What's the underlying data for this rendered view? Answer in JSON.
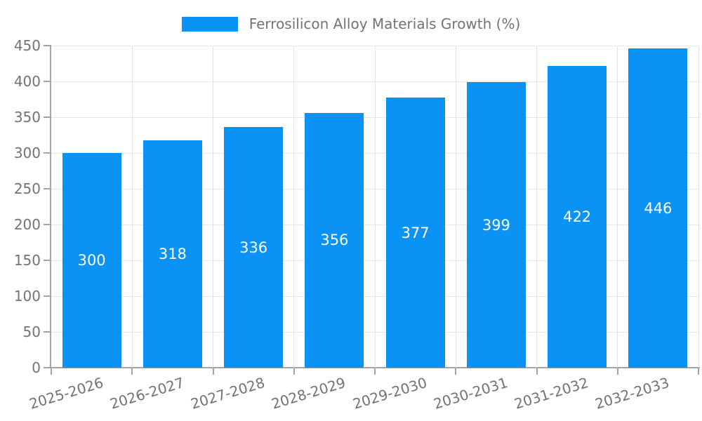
{
  "chart_data": {
    "type": "bar",
    "title": "",
    "legend_label": "Ferrosilicon Alloy Materials Growth (%)",
    "legend_position": "top-center",
    "categories": [
      "2025-2026",
      "2026-2027",
      "2027-2028",
      "2028-2029",
      "2029-2030",
      "2030-2031",
      "2031-2032",
      "2032-2033"
    ],
    "values": [
      300,
      318,
      336,
      356,
      377,
      399,
      422,
      446
    ],
    "bar_value_labels": [
      "300",
      "318",
      "336",
      "356",
      "377",
      "399",
      "422",
      "446"
    ],
    "xlabel": "",
    "ylabel": "",
    "ylim": [
      0,
      450
    ],
    "yticks": [
      0,
      50,
      100,
      150,
      200,
      250,
      300,
      350,
      400,
      450
    ],
    "grid": "on",
    "colors": {
      "bar": "#0a92f5",
      "bar_label_text": "#ffffff",
      "axis_line": "#a3a3a3",
      "grid_line": "#e8e8e8",
      "tick_label_text": "#737373",
      "legend_text": "#737373",
      "background": "#ffffff"
    }
  }
}
